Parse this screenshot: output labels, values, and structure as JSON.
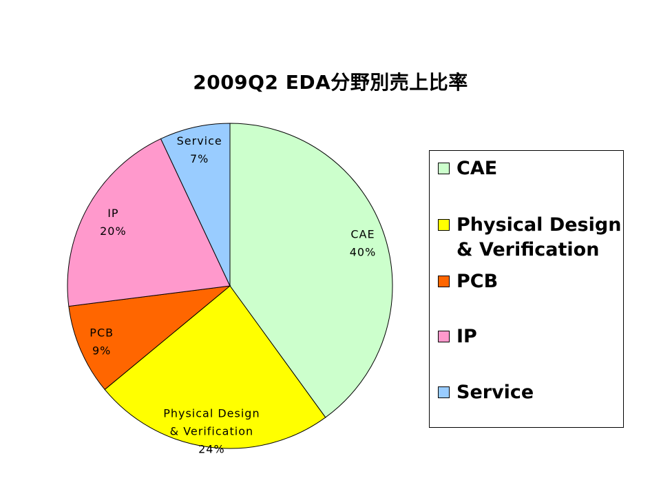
{
  "chart_data": {
    "type": "pie",
    "title": "2009Q2  EDA分野別売上比率",
    "categories": [
      "CAE",
      "Physical Design & Verification",
      "PCB",
      "IP",
      "Service"
    ],
    "values": [
      40,
      24,
      9,
      20,
      7
    ],
    "value_labels": [
      "40%",
      "24%",
      "9%",
      "20%",
      "7%"
    ],
    "slice_labels": [
      "CAE",
      "Physical Design\n& Verification",
      "PCB",
      "IP",
      "Service"
    ],
    "legend_labels": [
      "CAE",
      "Physical Design\n& Verification",
      "PCB",
      "IP",
      "Service"
    ],
    "colors": [
      "#CCFFCC",
      "#FFFF00",
      "#FF6600",
      "#FF99CC",
      "#99CCFF"
    ],
    "start": "12 o'clock",
    "direction": "clockwise",
    "legend": "right"
  }
}
